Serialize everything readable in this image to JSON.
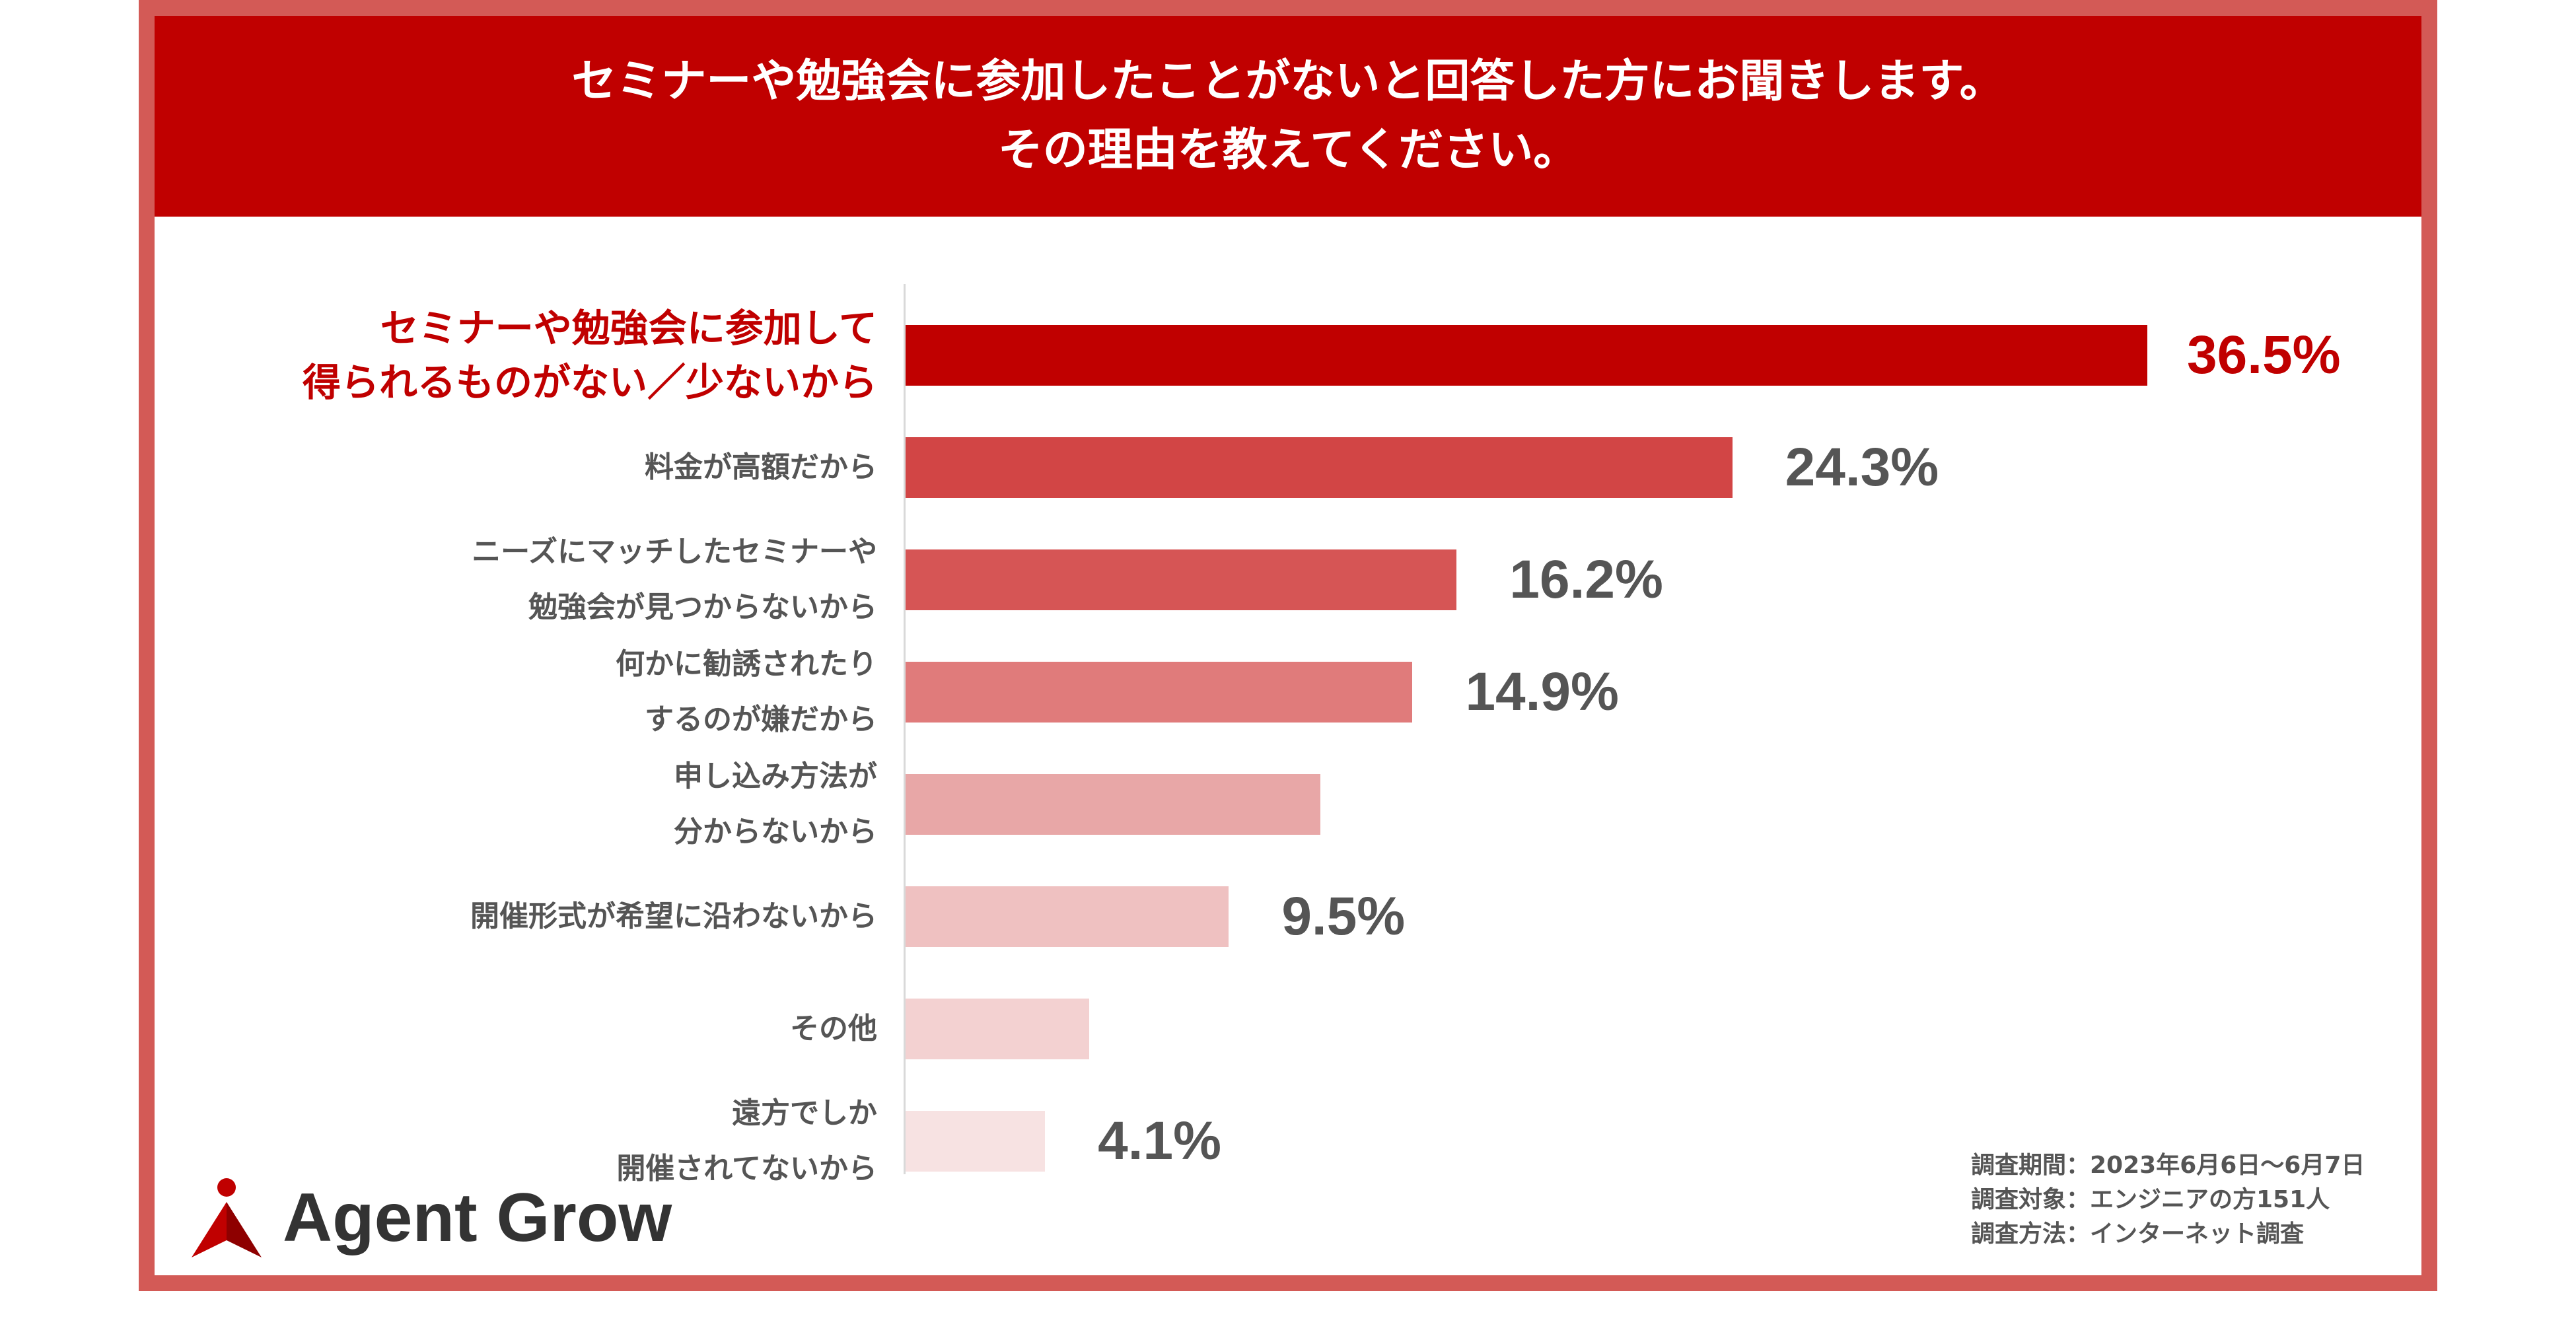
{
  "title_lines": [
    "セミナーや勉強会に参加したことがないと回答した方にお聞きします。",
    "その理由を教えてください。"
  ],
  "chart_data": {
    "type": "bar",
    "orientation": "horizontal",
    "categories": [
      [
        "セミナーや勉強会に参加して",
        "得られるものがない／少ないから"
      ],
      [
        "料金が高額だから"
      ],
      [
        "ニーズにマッチしたセミナーや",
        "勉強会が見つからないから"
      ],
      [
        "何かに勧誘されたり",
        "するのが嫌だから"
      ],
      [
        "申し込み方法が",
        "分からないから"
      ],
      [
        "開催形式が希望に沿わないから"
      ],
      [
        "その他"
      ],
      [
        "遠方でしか",
        "開催されてないから"
      ]
    ],
    "values": [
      36.5,
      24.3,
      16.2,
      14.9,
      12.2,
      9.5,
      5.4,
      4.1
    ],
    "value_labels": [
      "36.5%",
      "24.3%",
      "16.2%",
      "14.9%",
      "",
      "9.5%",
      "",
      "4.1%"
    ],
    "highlight_index": 0,
    "bar_colors": [
      "#c00000",
      "#d24545",
      "#d65555",
      "#e07b7b",
      "#e8a7a7",
      "#efc1c1",
      "#f3d1d1",
      "#f7e2e2"
    ],
    "xlim": [
      0,
      45
    ],
    "grid": false
  },
  "logo": {
    "text": "Agent Grow",
    "icon": "agent-grow-logo-icon"
  },
  "footnote": [
    "調査期間：2023年6月6日〜6月7日",
    "調査対象：エンジニアの方151人",
    "調査方法：インターネット調査"
  ]
}
